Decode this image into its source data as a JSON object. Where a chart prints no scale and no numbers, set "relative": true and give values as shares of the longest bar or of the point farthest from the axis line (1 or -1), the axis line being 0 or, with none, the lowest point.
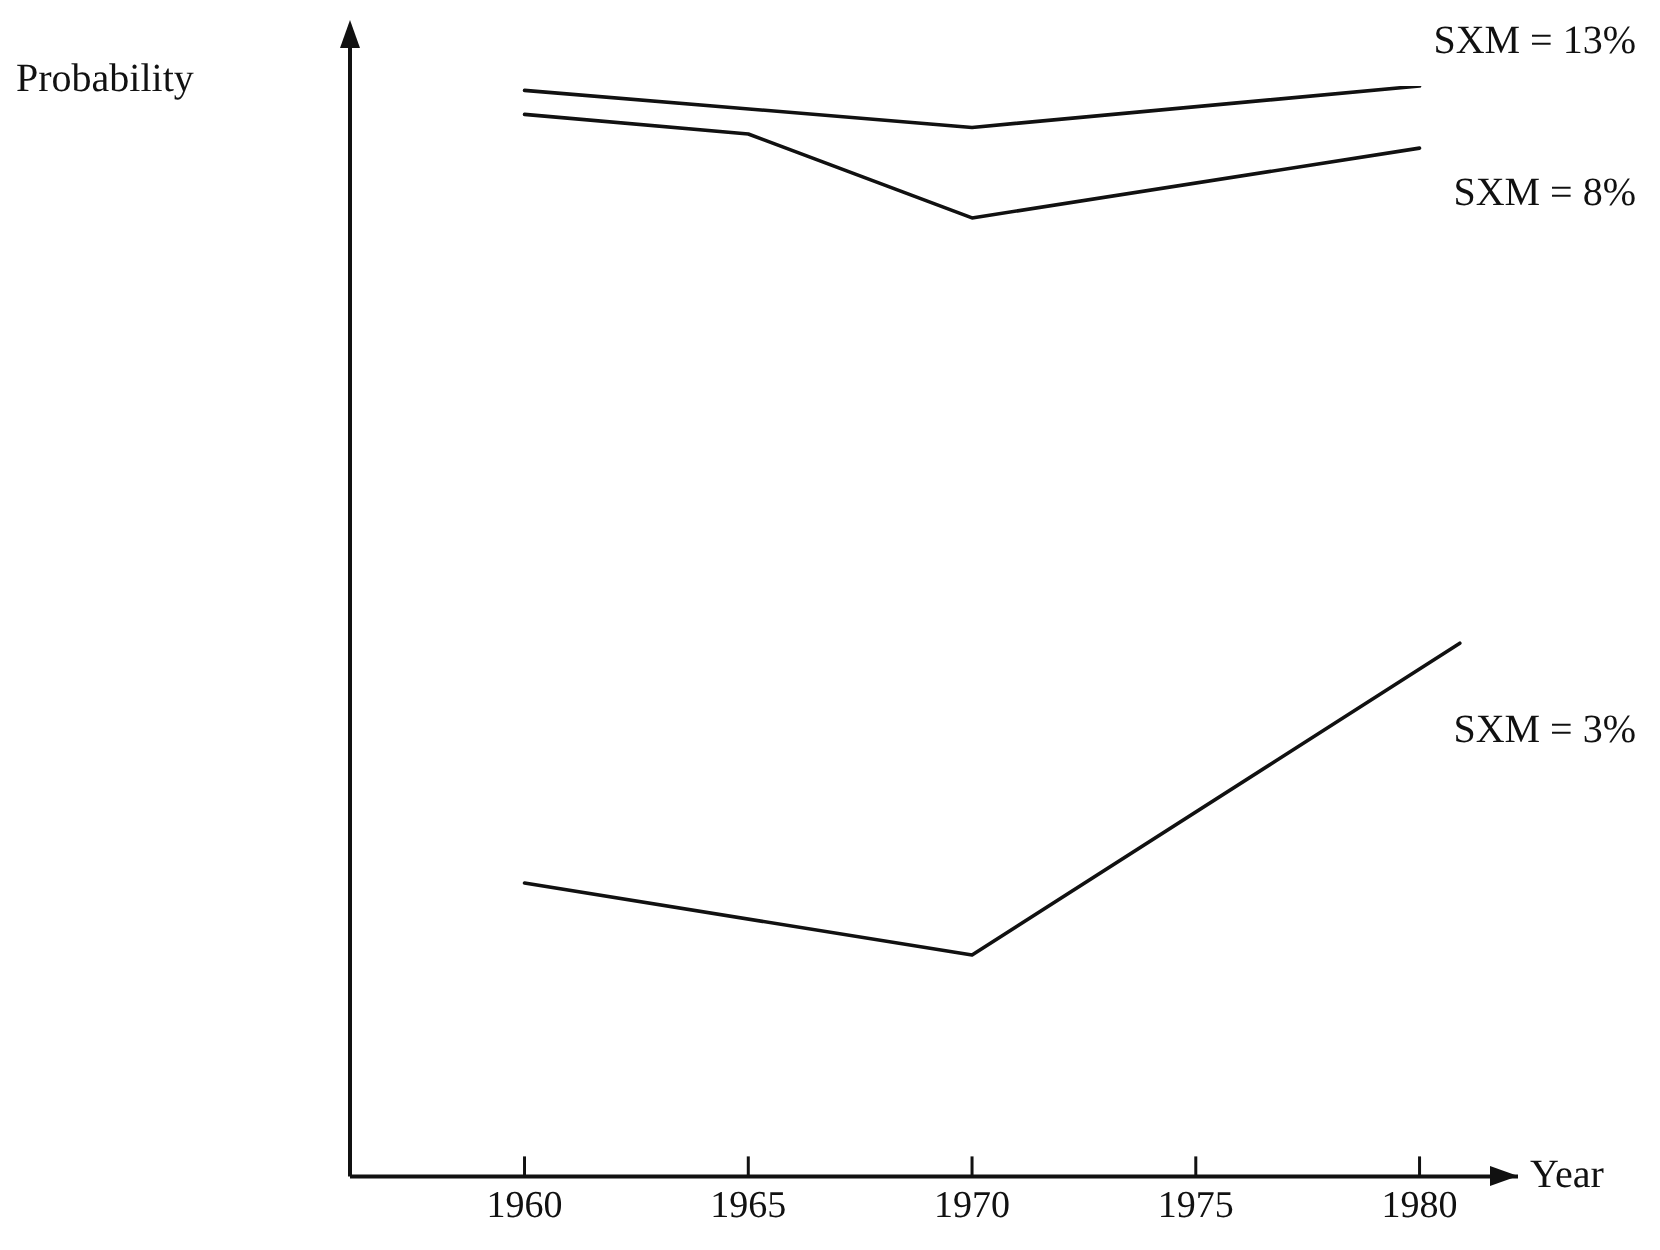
{
  "chart_data": {
    "type": "line",
    "relative": true,
    "xlabel": "Year",
    "ylabel": "Probability",
    "xlim": [
      1956.1,
      1982.2
    ],
    "xticks": [
      1960,
      1965,
      1970,
      1975,
      1980
    ],
    "series": [
      {
        "name": "SXM = 13%",
        "color": "#111111",
        "x": [
          1960,
          1970,
          1980
        ],
        "values": [
          0.996,
          0.962,
          1
        ]
      },
      {
        "name": "SXM = 8%",
        "color": "#111111",
        "x": [
          1960,
          1965,
          1970,
          1980
        ],
        "values": [
          0.974,
          0.956,
          0.879,
          0.943
        ]
      },
      {
        "name": "SXM = 3%",
        "color": "#111111",
        "x": [
          1960,
          1970,
          1980.9
        ],
        "values": [
          0.269,
          0.203,
          0.489
        ]
      }
    ],
    "legend": false,
    "grid": false,
    "marker": "none",
    "line_style": "solid"
  }
}
